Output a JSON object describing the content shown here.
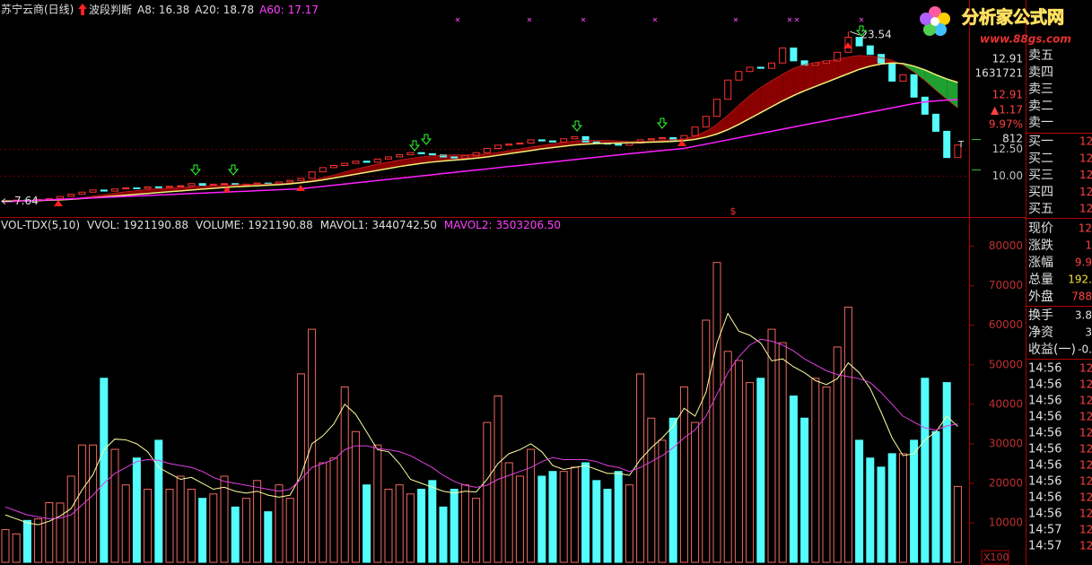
{
  "chart_data": [
    {
      "type": "candlestick",
      "title": "苏宁云商(日线)",
      "indicator": "波段判断",
      "open": [
        7.6,
        7.7,
        7.75,
        7.68,
        7.8,
        7.9,
        8.1,
        8.3,
        8.5,
        8.7,
        8.6,
        8.8,
        8.9,
        8.85,
        9.0,
        8.95,
        9.05,
        9.1,
        9.3,
        9.15,
        9.25,
        9.3,
        9.2,
        9.25,
        9.35,
        9.3,
        9.45,
        9.6,
        9.8,
        10.4,
        10.8,
        11.0,
        11.2,
        11.4,
        11.3,
        11.6,
        11.8,
        12.0,
        12.2,
        12.1,
        12.0,
        11.8,
        11.7,
        11.9,
        12.2,
        12.6,
        12.9,
        13.0,
        13.1,
        13.4,
        13.3,
        13.2,
        13.5,
        13.7,
        13.2,
        13.1,
        13.0,
        12.9,
        13.1,
        13.4,
        13.5,
        13.6,
        13.4,
        13.8,
        14.6,
        15.6,
        17.2,
        19.0,
        19.8,
        20.2,
        20.1,
        20.6,
        22.0,
        20.8,
        20.4,
        20.6,
        20.8,
        21.6,
        23.0,
        22.2,
        21.4,
        20.6,
        18.9,
        19.5,
        17.4,
        15.8,
        14.2,
        11.74
      ],
      "close": [
        7.7,
        7.75,
        7.68,
        7.8,
        7.9,
        8.1,
        8.3,
        8.5,
        8.7,
        8.6,
        8.8,
        8.9,
        8.85,
        9.0,
        8.95,
        9.05,
        9.1,
        9.3,
        9.15,
        9.25,
        9.3,
        9.2,
        9.25,
        9.35,
        9.3,
        9.45,
        9.6,
        9.8,
        10.4,
        10.8,
        11.0,
        11.2,
        11.4,
        11.3,
        11.6,
        11.8,
        12.0,
        12.2,
        12.1,
        12.0,
        11.8,
        11.7,
        11.9,
        12.2,
        12.6,
        12.9,
        13.0,
        13.1,
        13.4,
        13.3,
        13.2,
        13.5,
        13.7,
        13.2,
        13.1,
        13.0,
        12.9,
        13.1,
        13.4,
        13.5,
        13.6,
        13.4,
        13.8,
        14.6,
        15.6,
        17.2,
        19.0,
        19.8,
        20.2,
        20.1,
        20.6,
        22.0,
        20.8,
        20.4,
        20.6,
        20.8,
        21.6,
        23.0,
        22.2,
        21.4,
        20.6,
        18.9,
        19.5,
        17.4,
        15.8,
        14.2,
        11.74,
        12.91
      ],
      "series": [
        {
          "name": "A8:",
          "color": "#c02020",
          "legend_color": "#e0e0e0",
          "values": [
            7.68,
            7.7,
            7.71,
            7.72,
            7.74,
            7.78,
            7.86,
            7.98,
            8.12,
            8.26,
            8.4,
            8.54,
            8.65,
            8.74,
            8.82,
            8.88,
            8.94,
            9.0,
            9.06,
            9.1,
            9.14,
            9.18,
            9.22,
            9.24,
            9.27,
            9.3,
            9.35,
            9.45,
            9.62,
            9.85,
            10.1,
            10.38,
            10.65,
            10.9,
            11.12,
            11.32,
            11.5,
            11.66,
            11.8,
            11.9,
            11.96,
            11.98,
            11.98,
            12.02,
            12.1,
            12.22,
            12.38,
            12.55,
            12.72,
            12.88,
            13.02,
            13.16,
            13.3,
            13.34,
            13.35,
            13.34,
            13.3,
            13.26,
            13.25,
            13.28,
            13.36,
            13.42,
            13.5,
            13.75,
            14.2,
            14.85,
            15.7,
            16.65,
            17.55,
            18.3,
            18.95,
            19.55,
            20.1,
            20.45,
            20.65,
            20.8,
            20.95,
            21.15,
            21.3,
            21.25,
            21.1,
            20.85,
            20.4,
            19.75,
            18.95,
            18.05,
            17.2,
            16.38
          ]
        },
        {
          "name": "A20:",
          "color": "#f0f078",
          "legend_color": "#e0e0e0",
          "values": [
            7.65,
            7.67,
            7.69,
            7.71,
            7.74,
            7.78,
            7.83,
            7.9,
            7.98,
            8.06,
            8.14,
            8.22,
            8.3,
            8.38,
            8.46,
            8.54,
            8.62,
            8.7,
            8.78,
            8.86,
            8.94,
            9.0,
            9.05,
            9.1,
            9.15,
            9.2,
            9.28,
            9.38,
            9.5,
            9.65,
            9.82,
            10.0,
            10.18,
            10.36,
            10.54,
            10.72,
            10.9,
            11.05,
            11.2,
            11.32,
            11.42,
            11.5,
            11.58,
            11.68,
            11.8,
            11.95,
            12.1,
            12.25,
            12.4,
            12.55,
            12.68,
            12.8,
            12.92,
            13.0,
            13.05,
            13.08,
            13.1,
            13.12,
            13.15,
            13.18,
            13.22,
            13.26,
            13.32,
            13.45,
            13.65,
            13.95,
            14.35,
            14.85,
            15.4,
            15.95,
            16.5,
            17.05,
            17.55,
            18.0,
            18.4,
            18.8,
            19.2,
            19.6,
            20.0,
            20.3,
            20.5,
            20.6,
            20.55,
            20.3,
            19.95,
            19.5,
            19.1,
            18.78
          ]
        },
        {
          "name": "A60:",
          "color": "#ff20ff",
          "legend_color": "#ff40ff",
          "values": [
            7.6,
            7.65,
            7.69,
            7.74,
            7.78,
            7.83,
            7.87,
            7.92,
            7.96,
            8.01,
            8.05,
            8.1,
            8.14,
            8.19,
            8.23,
            8.28,
            8.32,
            8.37,
            8.41,
            8.46,
            8.5,
            8.55,
            8.59,
            8.64,
            8.68,
            8.73,
            8.77,
            8.82,
            8.93,
            9.04,
            9.15,
            9.26,
            9.37,
            9.48,
            9.59,
            9.7,
            9.8,
            9.91,
            10.02,
            10.13,
            10.24,
            10.35,
            10.46,
            10.57,
            10.68,
            10.79,
            10.9,
            11.0,
            11.11,
            11.22,
            11.33,
            11.44,
            11.55,
            11.66,
            11.77,
            11.88,
            11.99,
            12.1,
            12.2,
            12.3,
            12.4,
            12.5,
            12.6,
            12.8,
            13.0,
            13.2,
            13.4,
            13.6,
            13.8,
            14.0,
            14.2,
            14.4,
            14.6,
            14.8,
            15.0,
            15.2,
            15.4,
            15.6,
            15.8,
            16.0,
            16.2,
            16.4,
            16.6,
            16.8,
            16.95,
            17.05,
            17.12,
            17.17
          ]
        }
      ],
      "up_color": "#ff3232",
      "down_color": "#54fcfc",
      "rise_band_color": "#8b0000",
      "fall_band_color": "#20a030",
      "annotations": {
        "high": 23.54,
        "low": 7.64
      },
      "ylim": [
        6.17,
        26.33
      ],
      "yticks": [
        {
          "value": 10,
          "label": "10.00"
        },
        {
          "value": 12.5,
          "label": "12.50"
        }
      ],
      "grid": true
    },
    {
      "type": "bar",
      "title": "VOL-TDX(5,10)",
      "stats": [
        {
          "name": "VVOL:",
          "value": 1921190.88
        },
        {
          "name": "VOLUME:",
          "value": 1921190.88
        }
      ],
      "values": [
        8300,
        7200,
        10600,
        11000,
        15100,
        15000,
        21800,
        29700,
        29700,
        46600,
        28600,
        19600,
        26400,
        18500,
        30900,
        18500,
        21800,
        18500,
        16200,
        17300,
        21800,
        14000,
        16200,
        20700,
        12800,
        19600,
        16200,
        47700,
        59000,
        25200,
        26400,
        44400,
        33100,
        19600,
        29700,
        18500,
        19600,
        17300,
        18500,
        20700,
        14000,
        18500,
        19600,
        16200,
        35400,
        42100,
        25200,
        21800,
        28600,
        21800,
        23000,
        23000,
        24100,
        25200,
        20700,
        18500,
        23000,
        19600,
        47700,
        36500,
        30900,
        36500,
        44400,
        35400,
        61300,
        75900,
        53400,
        51100,
        45500,
        46600,
        59000,
        55600,
        42100,
        36500,
        46600,
        44400,
        54500,
        64600,
        30900,
        26400,
        24100,
        27500,
        27500,
        30900,
        46600,
        33100,
        45500,
        19211.91
      ],
      "series": [
        {
          "name": "MAVOL1:",
          "color": "#ffffa0",
          "legend_color": "#e0e0e0",
          "legend_value": {
            "value": 3440742.5,
            "label": "3440742.50"
          },
          "values": [
            12000,
            11000,
            10000,
            9500,
            10400,
            11700,
            13600,
            18300,
            22200,
            28500,
            31200,
            31000,
            30000,
            28000,
            24000,
            22500,
            21000,
            21500,
            20000,
            18500,
            19000,
            18000,
            17500,
            18000,
            17000,
            16500,
            17000,
            22000,
            30000,
            32000,
            35000,
            40000,
            37500,
            33000,
            28500,
            28000,
            25000,
            21000,
            20000,
            19000,
            18000,
            17500,
            18000,
            17800,
            21000,
            25000,
            27500,
            28500,
            30000,
            28000,
            24500,
            23500,
            24000,
            24500,
            23500,
            22500,
            22500,
            22000,
            26000,
            29000,
            31500,
            34500,
            39000,
            37000,
            43000,
            55500,
            63000,
            58500,
            57500,
            55500,
            51000,
            51500,
            49500,
            48000,
            46000,
            45000,
            46500,
            50500,
            48000,
            44000,
            38000,
            31500,
            27000,
            27500,
            31000,
            33000,
            37000,
            34407.43
          ]
        },
        {
          "name": "MAVOL2:",
          "color": "#e040e0",
          "legend_color": "#ff40ff",
          "legend_value": {
            "value": 3503206.5,
            "label": "3503206.50"
          },
          "values": [
            14000,
            13000,
            12000,
            11500,
            11000,
            11200,
            12000,
            14500,
            17000,
            20000,
            22500,
            24000,
            25500,
            26000,
            25800,
            25000,
            24500,
            24000,
            23000,
            21500,
            20500,
            20000,
            19500,
            19000,
            18500,
            18000,
            18500,
            21000,
            24000,
            25000,
            26000,
            28500,
            29500,
            29500,
            28800,
            28500,
            28000,
            27000,
            25500,
            24000,
            22000,
            20500,
            19500,
            19000,
            19500,
            21000,
            22000,
            23000,
            24000,
            25500,
            26500,
            26000,
            26000,
            26000,
            25500,
            24500,
            24000,
            23000,
            24000,
            25500,
            27000,
            29000,
            31500,
            33500,
            37000,
            42500,
            48000,
            52000,
            55000,
            56500,
            56000,
            55000,
            53500,
            51500,
            50000,
            48500,
            47500,
            47000,
            46500,
            45500,
            43000,
            40000,
            37000,
            35500,
            34000,
            33500,
            34500,
            35032.07
          ]
        }
      ],
      "ylim": [
        0,
        86500
      ],
      "yticks": [
        10000,
        20000,
        30000,
        40000,
        50000,
        60000,
        70000,
        80000
      ],
      "unit_label": "X100"
    }
  ],
  "side_labels": [
    {
      "text": "12.91",
      "color": "#e0e0e0"
    },
    {
      "text": "1631721",
      "color": "#e0e0e0"
    },
    {
      "text": "12.91",
      "color": "#ff4040"
    },
    {
      "text": "▲1.17",
      "color": "#ff4040"
    },
    {
      "text": "9.97%",
      "color": "#ff4040"
    },
    {
      "text": "812",
      "color": "#e0e0e0"
    }
  ],
  "markers": {
    "dollar": "$",
    "t": "T"
  },
  "watermark": {
    "title": "分析家公式网",
    "url": "www.88gs.com"
  },
  "quote_panel": {
    "sell": [
      "卖五",
      "卖四",
      "卖三",
      "卖二",
      "卖一"
    ],
    "buy": [
      {
        "label": "买一",
        "value": "12"
      },
      {
        "label": "买二",
        "value": "12"
      },
      {
        "label": "买三",
        "value": "12"
      },
      {
        "label": "买四",
        "value": "12"
      },
      {
        "label": "买五",
        "value": "12"
      }
    ],
    "quote": [
      {
        "label": "现价",
        "value": "12",
        "color": "#ff4040"
      },
      {
        "label": "涨跌",
        "value": "1",
        "color": "#ff4040"
      },
      {
        "label": "涨幅",
        "value": "9.9",
        "color": "#ff4040"
      },
      {
        "label": "总量",
        "value": "192.",
        "color": "#f0e040"
      },
      {
        "label": "外盘",
        "value": "788",
        "color": "#ff4040"
      }
    ],
    "quote2": [
      {
        "label": "换手",
        "value": "3.8",
        "color": "#e0e0e0"
      },
      {
        "label": "净资",
        "value": "3",
        "color": "#e0e0e0"
      },
      {
        "label": "收益(一)",
        "value": "-0.",
        "color": "#e0e0e0"
      }
    ],
    "ticks": [
      {
        "time": "14:56",
        "value": "12"
      },
      {
        "time": "14:56",
        "value": "12"
      },
      {
        "time": "14:56",
        "value": "12"
      },
      {
        "time": "14:56",
        "value": "12"
      },
      {
        "time": "14:56",
        "value": "12"
      },
      {
        "time": "14:56",
        "value": "12"
      },
      {
        "time": "14:56",
        "value": "12"
      },
      {
        "time": "14:56",
        "value": "12"
      },
      {
        "time": "14:56",
        "value": "12"
      },
      {
        "time": "14:56",
        "value": "12"
      },
      {
        "time": "14:57",
        "value": "12"
      },
      {
        "time": "14:57",
        "value": "12"
      }
    ]
  }
}
